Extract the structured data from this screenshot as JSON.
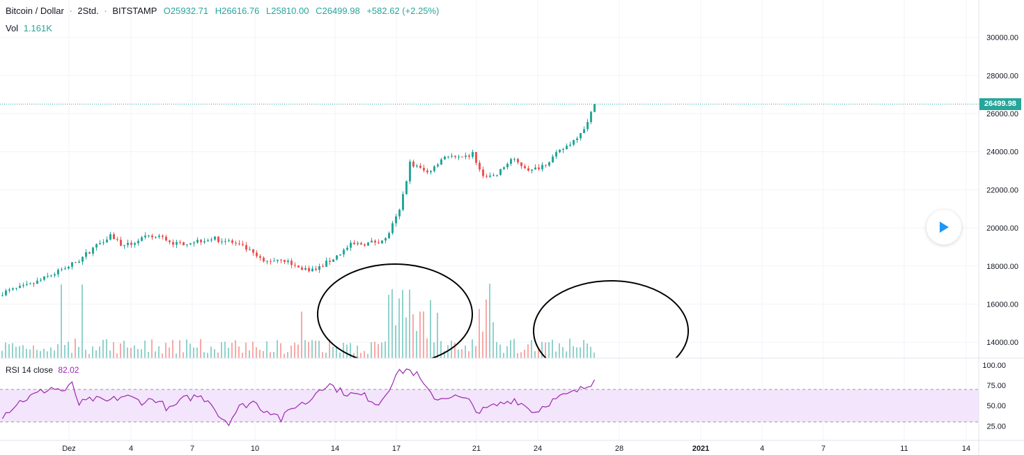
{
  "legend": {
    "symbol": "Bitcoin / Dollar",
    "interval": "2Std.",
    "exchange": "BITSTAMP",
    "open": "O25932.71",
    "high": "H26616.76",
    "low": "L25810.00",
    "close": "C26499.98",
    "change": "+582.62 (+2.25%)"
  },
  "volume": {
    "label": "Vol",
    "value": "1.161K"
  },
  "rsi": {
    "label": "RSI 14 close",
    "value": "82.02"
  },
  "last_price_tag": "26499.98",
  "colors": {
    "up": "#26a69a",
    "down": "#ef5350",
    "rsi_line": "#9c27b0",
    "rsi_band": "#f3e5fb",
    "grid": "#f0f3fa"
  },
  "icons": {
    "play_button": "play-icon"
  },
  "chart_data": [
    {
      "type": "candlestick",
      "title": "Bitcoin / Dollar",
      "ylim": [
        13500,
        31000
      ],
      "y_ticks": [
        "30000.00",
        "28000.00",
        "26000.00",
        "24000.00",
        "22000.00",
        "20000.00",
        "18000.00",
        "16000.00",
        "14000.00"
      ],
      "x_ticks": [
        "Dez",
        "4",
        "7",
        "10",
        "14",
        "17",
        "21",
        "24",
        "28",
        "2021",
        "4",
        "7",
        "11",
        "14"
      ],
      "last_close": 26499.98,
      "close_path": [
        [
          0,
          16600
        ],
        [
          8,
          17000
        ],
        [
          16,
          17700
        ],
        [
          22,
          18300
        ],
        [
          27,
          19100
        ],
        [
          31,
          19650
        ],
        [
          35,
          19000
        ],
        [
          40,
          19450
        ],
        [
          45,
          19550
        ],
        [
          50,
          19150
        ],
        [
          55,
          19300
        ],
        [
          60,
          19450
        ],
        [
          65,
          19300
        ],
        [
          70,
          18900
        ],
        [
          75,
          18200
        ],
        [
          80,
          18400
        ],
        [
          85,
          17900
        ],
        [
          90,
          17800
        ],
        [
          95,
          18400
        ],
        [
          100,
          19100
        ],
        [
          105,
          19200
        ],
        [
          110,
          19400
        ],
        [
          114,
          20900
        ],
        [
          117,
          23400
        ],
        [
          122,
          22900
        ],
        [
          127,
          23800
        ],
        [
          132,
          23600
        ],
        [
          135,
          23900
        ],
        [
          138,
          22600
        ],
        [
          142,
          22800
        ],
        [
          146,
          23600
        ],
        [
          149,
          23300
        ],
        [
          152,
          23000
        ],
        [
          156,
          23400
        ],
        [
          160,
          24000
        ],
        [
          164,
          24600
        ],
        [
          168,
          25500
        ],
        [
          170,
          26500
        ]
      ],
      "annotations": [
        "ellipse",
        "ellipse"
      ]
    },
    {
      "type": "bar",
      "title": "Vol",
      "last_value": "1.161K"
    },
    {
      "type": "line",
      "title": "RSI 14 close",
      "ylim": [
        20,
        100
      ],
      "y_ticks": [
        "100.00",
        "75.00",
        "50.00",
        "25.00"
      ],
      "band": [
        30,
        70
      ],
      "last_value": 82.02,
      "values_path": [
        [
          0,
          38
        ],
        [
          5,
          55
        ],
        [
          10,
          65
        ],
        [
          14,
          72
        ],
        [
          18,
          68
        ],
        [
          20,
          76
        ],
        [
          22,
          52
        ],
        [
          26,
          58
        ],
        [
          30,
          55
        ],
        [
          35,
          62
        ],
        [
          40,
          55
        ],
        [
          44,
          58
        ],
        [
          48,
          45
        ],
        [
          52,
          58
        ],
        [
          56,
          62
        ],
        [
          60,
          55
        ],
        [
          62,
          38
        ],
        [
          65,
          30
        ],
        [
          68,
          48
        ],
        [
          72,
          55
        ],
        [
          75,
          45
        ],
        [
          78,
          42
        ],
        [
          80,
          33
        ],
        [
          84,
          50
        ],
        [
          88,
          55
        ],
        [
          91,
          72
        ],
        [
          94,
          76
        ],
        [
          97,
          68
        ],
        [
          100,
          64
        ],
        [
          104,
          62
        ],
        [
          108,
          52
        ],
        [
          111,
          72
        ],
        [
          113,
          88
        ],
        [
          116,
          95
        ],
        [
          119,
          88
        ],
        [
          122,
          68
        ],
        [
          125,
          58
        ],
        [
          128,
          62
        ],
        [
          131,
          60
        ],
        [
          134,
          55
        ],
        [
          137,
          42
        ],
        [
          140,
          48
        ],
        [
          143,
          52
        ],
        [
          147,
          58
        ],
        [
          150,
          50
        ],
        [
          153,
          42
        ],
        [
          156,
          52
        ],
        [
          160,
          60
        ],
        [
          164,
          66
        ],
        [
          168,
          74
        ],
        [
          170,
          82
        ]
      ]
    }
  ]
}
